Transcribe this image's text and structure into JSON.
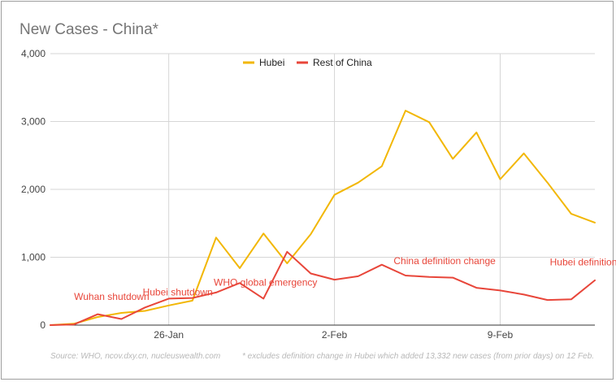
{
  "chart_data": {
    "type": "line",
    "title": "New Cases - China*",
    "xlabel": "",
    "ylabel": "",
    "ylim": [
      0,
      4000
    ],
    "yticks": [
      0,
      1000,
      2000,
      3000,
      4000
    ],
    "ytick_labels": [
      "0",
      "1,000",
      "2,000",
      "3,000",
      "4,000"
    ],
    "xlim": [
      0,
      23
    ],
    "xticks": [
      {
        "x": 5,
        "label": "26-Jan"
      },
      {
        "x": 12,
        "label": "2-Feb"
      },
      {
        "x": 19,
        "label": "9-Feb"
      }
    ],
    "legend_position": "top-center",
    "series": [
      {
        "name": "Hubei",
        "color": "#f2b705",
        "x": [
          0,
          1,
          2,
          3,
          4,
          5,
          6,
          7,
          8,
          9,
          10,
          11,
          12,
          13,
          14,
          15,
          16,
          17,
          18,
          19,
          20,
          21,
          22,
          23
        ],
        "values": [
          0,
          20,
          120,
          180,
          210,
          290,
          360,
          1290,
          840,
          1350,
          910,
          1340,
          1920,
          2100,
          2340,
          3160,
          2990,
          2450,
          2840,
          2150,
          2530,
          2100,
          1640,
          1510
        ]
      },
      {
        "name": "Rest of China",
        "color": "#e8463a",
        "x": [
          0,
          1,
          2,
          3,
          4,
          5,
          6,
          7,
          8,
          9,
          10,
          11,
          12,
          13,
          14,
          15,
          16,
          17,
          18,
          19,
          20,
          21,
          22,
          23
        ],
        "values": [
          0,
          10,
          160,
          90,
          260,
          390,
          400,
          480,
          620,
          390,
          1080,
          760,
          670,
          720,
          890,
          730,
          710,
          700,
          550,
          510,
          450,
          370,
          380,
          660
        ]
      }
    ],
    "annotations": [
      {
        "text": "Wuhan shutdown",
        "x": 1,
        "y": 370
      },
      {
        "text": "Hubei shutdown",
        "x": 3.9,
        "y": 440
      },
      {
        "text": "WHO global emergency",
        "x": 6.9,
        "y": 580
      },
      {
        "text": "China definition change",
        "x": 14.5,
        "y": 900
      },
      {
        "text": "Hubei definition",
        "x": 21.1,
        "y": 880
      }
    ]
  },
  "footer": {
    "source": "Source: WHO, ncov.dxy.cn, nucleuswealth.com",
    "note": "* excludes definition change in Hubei which added 13,332 new cases (from prior days) on 12 Feb."
  }
}
